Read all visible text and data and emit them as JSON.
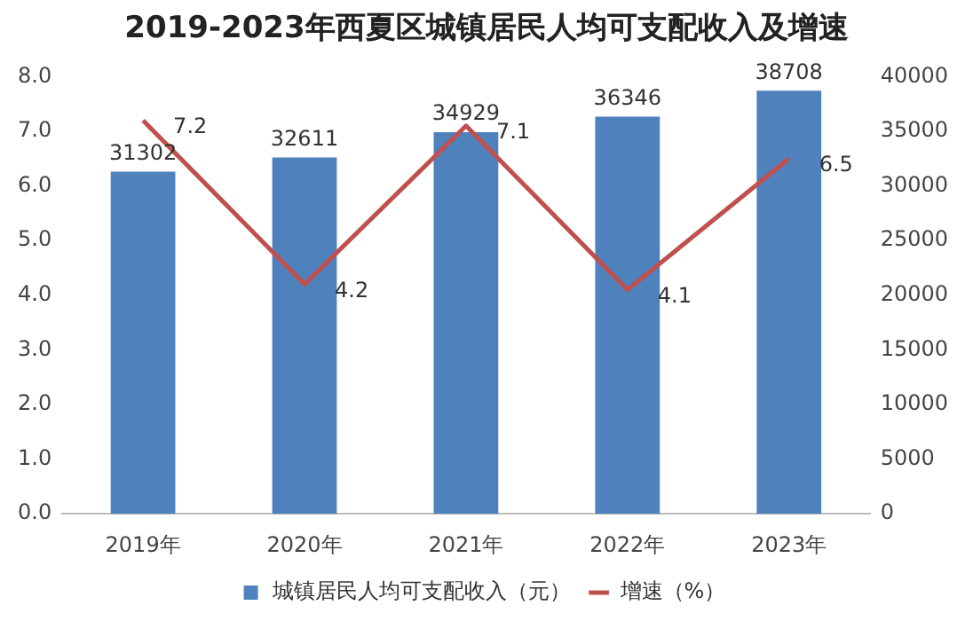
{
  "chart_data": {
    "type": "bar",
    "title": "2019-2023年西夏区城镇居民人均可支配收入及增速",
    "categories": [
      "2019年",
      "2020年",
      "2021年",
      "2022年",
      "2023年"
    ],
    "series": [
      {
        "name": "城镇居民人均可支配收入（元）",
        "axis": "y2",
        "color": "#4f81bd",
        "values": [
          31302,
          32611,
          34929,
          36346,
          38708
        ]
      },
      {
        "name": "增速（%）",
        "type": "line",
        "axis": "y",
        "color": "#c0504d",
        "values": [
          7.2,
          4.2,
          7.1,
          4.1,
          6.5
        ]
      }
    ],
    "ylim": [
      0,
      8
    ],
    "yticks": [
      {
        "value": 0,
        "label": "0.0"
      },
      {
        "value": 1,
        "label": "1.0"
      },
      {
        "value": 2,
        "label": "2.0"
      },
      {
        "value": 3,
        "label": "3.0"
      },
      {
        "value": 4,
        "label": "4.0"
      },
      {
        "value": 5,
        "label": "5.0"
      },
      {
        "value": 6,
        "label": "6.0"
      },
      {
        "value": 7,
        "label": "7.0"
      },
      {
        "value": 8,
        "label": "8.0"
      }
    ],
    "y2lim": [
      0,
      40000
    ],
    "y2ticks": [
      0,
      5000,
      10000,
      15000,
      20000,
      25000,
      30000,
      35000,
      40000
    ],
    "data_labels": true,
    "legend": "bottom",
    "marker": "none",
    "line_style": "solid"
  }
}
